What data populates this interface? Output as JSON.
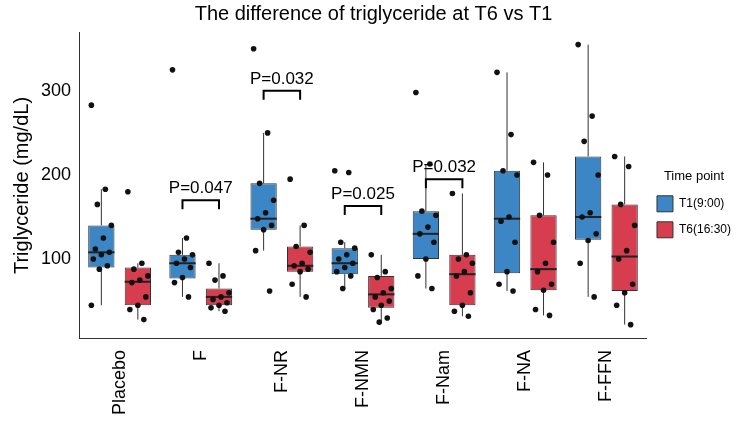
{
  "chart_data": {
    "type": "boxplot",
    "title": "The difference of triglyceride at T6 vs T1",
    "y_label": "Triglyceride (mg/dL)",
    "categories": [
      "Placebo",
      "F",
      "F-NR",
      "F-NMN",
      "F-Nam",
      "F-NA",
      "F-FFN"
    ],
    "legend": "right",
    "legend_title": "Time point",
    "grid": false,
    "ylim": [
      5,
      370
    ],
    "yticks": [
      100,
      200,
      300
    ],
    "series": [
      {
        "name": "T1(9:00)",
        "color": "#3c86c6",
        "min": [
          45,
          55,
          110,
          65,
          65,
          62,
          55
        ],
        "q1": [
          90,
          77,
          135,
          82,
          100,
          83,
          123
        ],
        "median": [
          108,
          95,
          148,
          95,
          130,
          148,
          150
        ],
        "q3": [
          140,
          105,
          190,
          113,
          157,
          205,
          222
        ],
        "max": [
          183,
          125,
          250,
          120,
          213,
          322,
          355
        ],
        "points": [
          [
            283,
            183,
            165,
            140,
            125,
            112,
            108,
            105,
            100,
            92,
            88,
            45
          ],
          [
            325,
            125,
            108,
            105,
            100,
            95,
            90,
            78,
            72,
            55
          ],
          [
            350,
            250,
            190,
            170,
            155,
            148,
            140,
            135,
            110,
            62
          ],
          [
            205,
            203,
            120,
            113,
            105,
            100,
            95,
            90,
            85,
            80,
            65
          ],
          [
            298,
            213,
            157,
            152,
            138,
            130,
            120,
            100,
            80,
            65
          ],
          [
            322,
            248,
            205,
            200,
            150,
            145,
            120,
            85,
            70,
            62
          ],
          [
            355,
            270,
            240,
            200,
            155,
            150,
            130,
            122,
            95,
            55
          ]
        ]
      },
      {
        "name": "T6(16:30)",
        "color": "#d63d4e",
        "min": [
          28,
          38,
          55,
          25,
          32,
          33,
          22
        ],
        "q1": [
          45,
          45,
          85,
          42,
          45,
          63,
          62
        ],
        "median": [
          73,
          55,
          92,
          58,
          82,
          88,
          103
        ],
        "q3": [
          90,
          65,
          115,
          80,
          105,
          152,
          165
        ],
        "max": [
          95,
          95,
          140,
          105,
          178,
          215,
          222
        ],
        "points": [
          [
            180,
            95,
            88,
            80,
            75,
            72,
            55,
            45,
            40,
            28
          ],
          [
            95,
            80,
            75,
            60,
            55,
            52,
            48,
            45,
            42,
            38
          ],
          [
            195,
            140,
            115,
            108,
            95,
            92,
            88,
            85,
            70,
            55
          ],
          [
            105,
            85,
            78,
            65,
            60,
            55,
            50,
            45,
            40,
            30,
            25
          ],
          [
            178,
            105,
            100,
            95,
            85,
            80,
            60,
            45,
            38,
            32
          ],
          [
            215,
            200,
            152,
            120,
            95,
            85,
            70,
            63,
            40,
            33
          ],
          [
            222,
            210,
            165,
            140,
            110,
            100,
            70,
            60,
            45,
            22
          ]
        ]
      }
    ],
    "annotations": [
      {
        "category": "F",
        "text": "P=0.047",
        "y": 170
      },
      {
        "category": "F-NR",
        "text": "P=0.032",
        "y": 300
      },
      {
        "category": "F-NMN",
        "text": "P=0.025",
        "y": 163
      },
      {
        "category": "F-Nam",
        "text": "P=0.032",
        "y": 195
      }
    ]
  }
}
